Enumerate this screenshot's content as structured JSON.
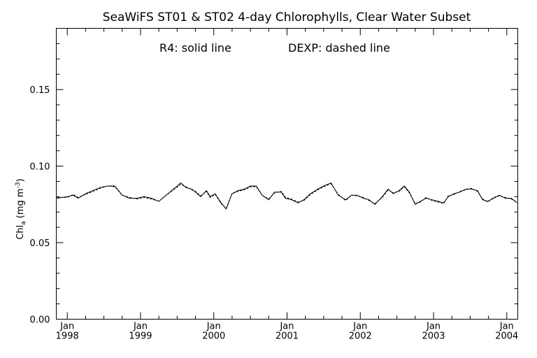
{
  "chart_data": {
    "type": "line",
    "title": "SeaWiFS ST01 & ST02 4-day Chlorophylls, Clear Water Subset",
    "annotations": [
      "R4: solid line",
      "DEXP: dashed line"
    ],
    "xlabel": "",
    "ylabel": "Chl_a (mg m^-3)",
    "ylabel_main": "Chl",
    "ylabel_sub": "a",
    "ylabel_units": "(mg m",
    "ylabel_sup": "-3",
    "ylabel_close": ")",
    "xlim": [
      1997.85,
      2004.15
    ],
    "ylim": [
      0.0,
      0.19
    ],
    "grid": false,
    "legend": "none",
    "y_ticks": [
      {
        "value": 0.0,
        "label": "0.00"
      },
      {
        "value": 0.05,
        "label": "0.05"
      },
      {
        "value": 0.1,
        "label": "0.10"
      },
      {
        "value": 0.15,
        "label": "0.15"
      }
    ],
    "x_ticks": [
      {
        "value": 1998,
        "month": "Jan",
        "year": "1998"
      },
      {
        "value": 1999,
        "month": "Jan",
        "year": "1999"
      },
      {
        "value": 2000,
        "month": "Jan",
        "year": "2000"
      },
      {
        "value": 2001,
        "month": "Jan",
        "year": "2001"
      },
      {
        "value": 2002,
        "month": "Jan",
        "year": "2002"
      },
      {
        "value": 2003,
        "month": "Jan",
        "year": "2003"
      },
      {
        "value": 2004,
        "month": "Jan",
        "year": "2004"
      }
    ],
    "series": [
      {
        "name": "R4",
        "style": "solid",
        "color": "#000000",
        "x": [
          1997.86,
          1998.0,
          1998.08,
          1998.15,
          1998.25,
          1998.35,
          1998.45,
          1998.55,
          1998.65,
          1998.75,
          1998.85,
          1998.95,
          1999.05,
          1999.15,
          1999.25,
          1999.35,
          1999.45,
          1999.55,
          1999.62,
          1999.7,
          1999.75,
          1999.82,
          1999.9,
          1999.95,
          2000.02,
          2000.1,
          2000.17,
          2000.25,
          2000.33,
          2000.42,
          2000.5,
          2000.58,
          2000.66,
          2000.75,
          2000.83,
          2000.92,
          2000.98,
          2001.06,
          2001.15,
          2001.23,
          2001.32,
          2001.42,
          2001.5,
          2001.6,
          2001.7,
          2001.8,
          2001.88,
          2001.96,
          2002.04,
          2002.12,
          2002.2,
          2002.3,
          2002.38,
          2002.45,
          2002.53,
          2002.6,
          2002.67,
          2002.75,
          2002.82,
          2002.9,
          2002.98,
          2003.06,
          2003.14,
          2003.2,
          2003.28,
          2003.36,
          2003.44,
          2003.52,
          2003.6,
          2003.67,
          2003.74,
          2003.82,
          2003.9,
          2003.98,
          2004.06,
          2004.14
        ],
        "values": [
          0.079,
          0.08,
          0.081,
          0.079,
          0.082,
          0.084,
          0.086,
          0.087,
          0.087,
          0.081,
          0.079,
          0.079,
          0.08,
          0.079,
          0.077,
          0.081,
          0.085,
          0.089,
          0.086,
          0.085,
          0.083,
          0.08,
          0.084,
          0.08,
          0.082,
          0.076,
          0.072,
          0.082,
          0.084,
          0.085,
          0.087,
          0.087,
          0.081,
          0.078,
          0.083,
          0.083,
          0.079,
          0.078,
          0.076,
          0.078,
          0.082,
          0.085,
          0.087,
          0.089,
          0.081,
          0.078,
          0.081,
          0.081,
          0.079,
          0.078,
          0.075,
          0.08,
          0.085,
          0.082,
          0.084,
          0.087,
          0.083,
          0.075,
          0.077,
          0.079,
          0.078,
          0.077,
          0.076,
          0.08,
          0.082,
          0.083,
          0.085,
          0.085,
          0.084,
          0.078,
          0.077,
          0.079,
          0.081,
          0.079,
          0.079,
          0.076
        ]
      },
      {
        "name": "DEXP",
        "style": "dashed",
        "color": "#000000",
        "x": [
          1997.86,
          1998.0,
          1998.08,
          1998.15,
          1998.25,
          1998.35,
          1998.45,
          1998.55,
          1998.65,
          1998.75,
          1998.85,
          1998.95,
          1999.05,
          1999.15,
          1999.25,
          1999.35,
          1999.45,
          1999.55,
          1999.62,
          1999.7,
          1999.75,
          1999.82,
          1999.9,
          1999.95,
          2000.02,
          2000.1,
          2000.17,
          2000.25,
          2000.33,
          2000.42,
          2000.5,
          2000.58,
          2000.66,
          2000.75,
          2000.83,
          2000.92,
          2000.98,
          2001.06,
          2001.15,
          2001.23,
          2001.32,
          2001.42,
          2001.5,
          2001.6,
          2001.7,
          2001.8,
          2001.88,
          2001.96,
          2002.04,
          2002.12,
          2002.2,
          2002.3,
          2002.38,
          2002.45,
          2002.53,
          2002.6,
          2002.67,
          2002.75,
          2002.82,
          2002.9,
          2002.98,
          2003.06,
          2003.14,
          2003.2,
          2003.28,
          2003.36,
          2003.44,
          2003.52,
          2003.6,
          2003.67,
          2003.74,
          2003.82,
          2003.9,
          2003.98,
          2004.06,
          2004.14
        ],
        "values": [
          0.0795,
          0.0795,
          0.0815,
          0.0795,
          0.0815,
          0.0835,
          0.0855,
          0.087,
          0.0865,
          0.081,
          0.0795,
          0.0785,
          0.0795,
          0.0785,
          0.077,
          0.081,
          0.0845,
          0.088,
          0.0865,
          0.0845,
          0.0835,
          0.0805,
          0.0835,
          0.0795,
          0.0815,
          0.0755,
          0.0725,
          0.082,
          0.0835,
          0.0845,
          0.0865,
          0.0865,
          0.081,
          0.0785,
          0.0825,
          0.0835,
          0.0795,
          0.0785,
          0.0765,
          0.0775,
          0.0815,
          0.0845,
          0.0865,
          0.0885,
          0.0815,
          0.0775,
          0.081,
          0.0805,
          0.0795,
          0.0775,
          0.0755,
          0.0795,
          0.0845,
          0.0825,
          0.0835,
          0.0865,
          0.0825,
          0.0755,
          0.0765,
          0.0795,
          0.0775,
          0.0765,
          0.0755,
          0.0805,
          0.0815,
          0.0835,
          0.0845,
          0.0855,
          0.0835,
          0.0785,
          0.0765,
          0.0795,
          0.0805,
          0.0795,
          0.0785,
          0.0765
        ]
      }
    ]
  }
}
